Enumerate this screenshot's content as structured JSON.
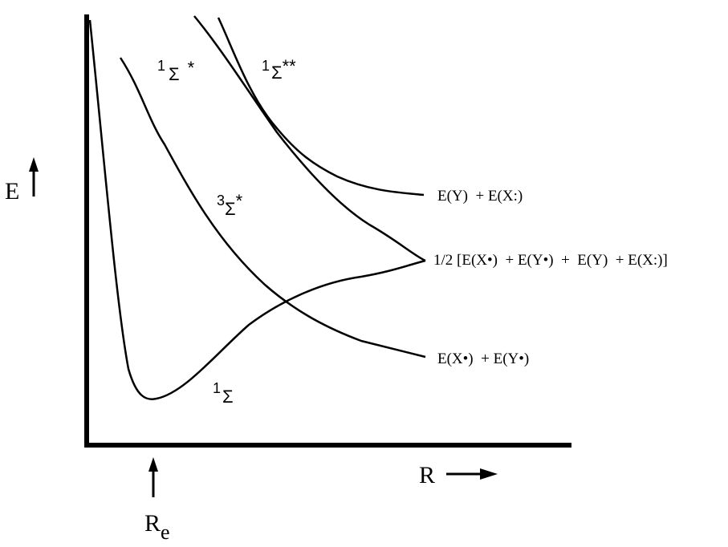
{
  "axes": {
    "y_label": "E",
    "x_label": "R",
    "marker_label": {
      "main": "R",
      "subscript": "e"
    }
  },
  "states": [
    {
      "sup": "1",
      "symbol": "Σ",
      "suffix": "*"
    },
    {
      "sup": "1",
      "symbol": "Σ",
      "suffix": "**"
    },
    {
      "sup": "3",
      "symbol": "Σ",
      "suffix": "*"
    },
    {
      "sup": "1",
      "symbol": "Σ"
    }
  ],
  "limits": [
    "E(Y)  + E(X:)",
    "1/2 [E(X•)  + E(Y•)  +  E(Y)  + E(X:)]",
    "E(X•)  + E(Y•)"
  ]
}
